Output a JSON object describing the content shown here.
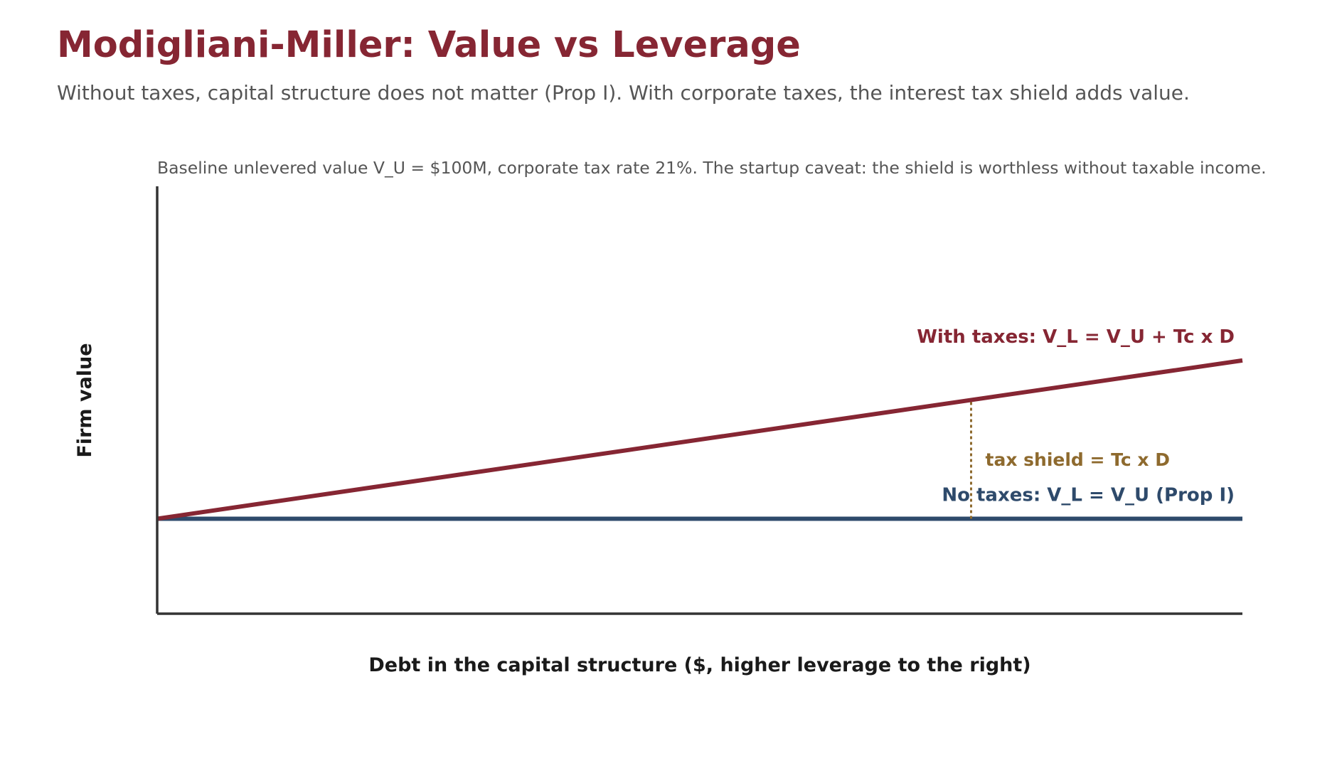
{
  "title": "Modigliani-Miller: Value vs Leverage",
  "subtitle": "Without taxes, capital structure does not matter (Prop I). With corporate taxes, the interest tax shield adds value.",
  "colors": {
    "title": "#862633",
    "with_taxes": "#862633",
    "no_taxes": "#2e4a6b",
    "tax_shield": "#8e6a2e",
    "axis": "#333333"
  },
  "chart_data": {
    "type": "line",
    "note": "Baseline unlevered value V_U = $100M, corporate tax rate 21%. The startup caveat: the shield is worthless without taxable income.",
    "xlabel": "Debt in the capital structure ($, higher leverage to the right)",
    "ylabel": "Firm value",
    "xlim": [
      0,
      1
    ],
    "ylim": [
      -0.6,
      2.1
    ],
    "grid": false,
    "tick_labels": false,
    "series": [
      {
        "name": "No taxes: V_L = V_U (Prop I)",
        "x": [
          0,
          1
        ],
        "y": [
          0,
          0
        ],
        "color": "#2e4a6b"
      },
      {
        "name": "With taxes: V_L = V_U + Tc x D",
        "x": [
          0,
          1
        ],
        "y": [
          0,
          1.0
        ],
        "color": "#862633"
      }
    ],
    "annotations": [
      {
        "text": "tax shield = Tc x D",
        "x": 0.75,
        "y_from": 0,
        "y_to": 0.75,
        "style": "dotted",
        "color": "#8e6a2e"
      }
    ]
  }
}
